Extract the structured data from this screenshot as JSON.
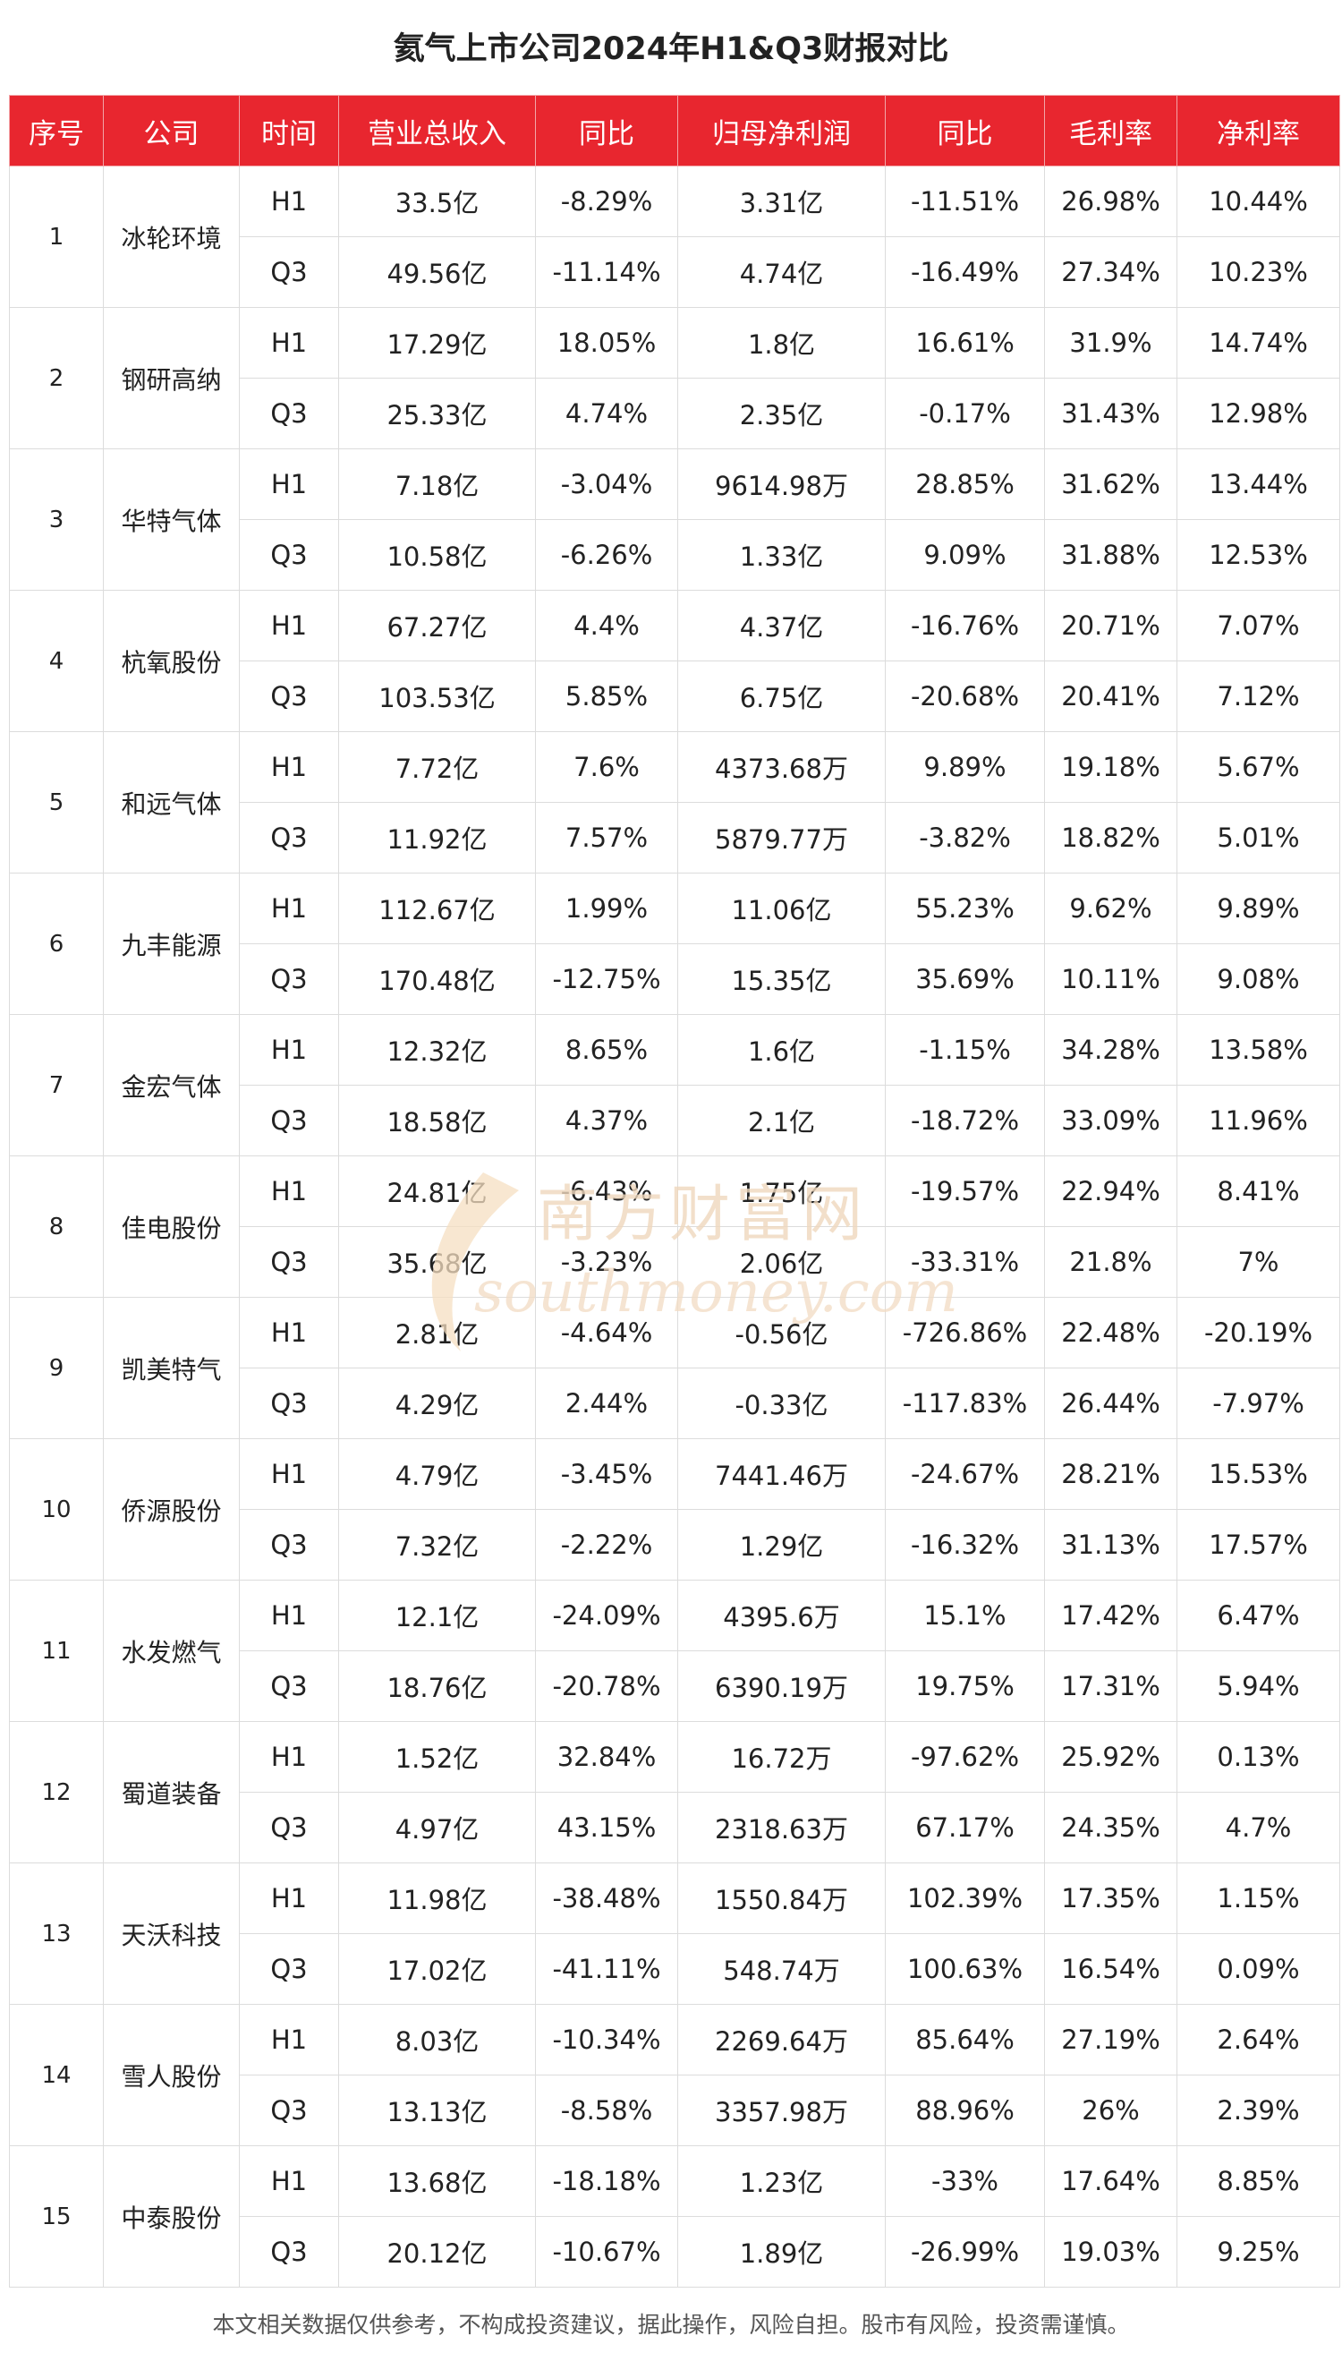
{
  "title": "氦气上市公司2024年H1&Q3财报对比",
  "columns": [
    "序号",
    "公司",
    "时间",
    "营业总收入",
    "同比",
    "归母净利润",
    "同比",
    "毛利率",
    "净利率"
  ],
  "rows": [
    {
      "seq": "1",
      "company": "冰轮环境",
      "periods": [
        {
          "time": "H1",
          "revenue": "33.5亿",
          "revenue_yoy": "-8.29%",
          "net_profit": "3.31亿",
          "profit_yoy": "-11.51%",
          "gross_margin": "26.98%",
          "net_margin": "10.44%"
        },
        {
          "time": "Q3",
          "revenue": "49.56亿",
          "revenue_yoy": "-11.14%",
          "net_profit": "4.74亿",
          "profit_yoy": "-16.49%",
          "gross_margin": "27.34%",
          "net_margin": "10.23%"
        }
      ]
    },
    {
      "seq": "2",
      "company": "钢研高纳",
      "periods": [
        {
          "time": "H1",
          "revenue": "17.29亿",
          "revenue_yoy": "18.05%",
          "net_profit": "1.8亿",
          "profit_yoy": "16.61%",
          "gross_margin": "31.9%",
          "net_margin": "14.74%"
        },
        {
          "time": "Q3",
          "revenue": "25.33亿",
          "revenue_yoy": "4.74%",
          "net_profit": "2.35亿",
          "profit_yoy": "-0.17%",
          "gross_margin": "31.43%",
          "net_margin": "12.98%"
        }
      ]
    },
    {
      "seq": "3",
      "company": "华特气体",
      "periods": [
        {
          "time": "H1",
          "revenue": "7.18亿",
          "revenue_yoy": "-3.04%",
          "net_profit": "9614.98万",
          "profit_yoy": "28.85%",
          "gross_margin": "31.62%",
          "net_margin": "13.44%"
        },
        {
          "time": "Q3",
          "revenue": "10.58亿",
          "revenue_yoy": "-6.26%",
          "net_profit": "1.33亿",
          "profit_yoy": "9.09%",
          "gross_margin": "31.88%",
          "net_margin": "12.53%"
        }
      ]
    },
    {
      "seq": "4",
      "company": "杭氧股份",
      "periods": [
        {
          "time": "H1",
          "revenue": "67.27亿",
          "revenue_yoy": "4.4%",
          "net_profit": "4.37亿",
          "profit_yoy": "-16.76%",
          "gross_margin": "20.71%",
          "net_margin": "7.07%"
        },
        {
          "time": "Q3",
          "revenue": "103.53亿",
          "revenue_yoy": "5.85%",
          "net_profit": "6.75亿",
          "profit_yoy": "-20.68%",
          "gross_margin": "20.41%",
          "net_margin": "7.12%"
        }
      ]
    },
    {
      "seq": "5",
      "company": "和远气体",
      "periods": [
        {
          "time": "H1",
          "revenue": "7.72亿",
          "revenue_yoy": "7.6%",
          "net_profit": "4373.68万",
          "profit_yoy": "9.89%",
          "gross_margin": "19.18%",
          "net_margin": "5.67%"
        },
        {
          "time": "Q3",
          "revenue": "11.92亿",
          "revenue_yoy": "7.57%",
          "net_profit": "5879.77万",
          "profit_yoy": "-3.82%",
          "gross_margin": "18.82%",
          "net_margin": "5.01%"
        }
      ]
    },
    {
      "seq": "6",
      "company": "九丰能源",
      "periods": [
        {
          "time": "H1",
          "revenue": "112.67亿",
          "revenue_yoy": "1.99%",
          "net_profit": "11.06亿",
          "profit_yoy": "55.23%",
          "gross_margin": "9.62%",
          "net_margin": "9.89%"
        },
        {
          "time": "Q3",
          "revenue": "170.48亿",
          "revenue_yoy": "-12.75%",
          "net_profit": "15.35亿",
          "profit_yoy": "35.69%",
          "gross_margin": "10.11%",
          "net_margin": "9.08%"
        }
      ]
    },
    {
      "seq": "7",
      "company": "金宏气体",
      "periods": [
        {
          "time": "H1",
          "revenue": "12.32亿",
          "revenue_yoy": "8.65%",
          "net_profit": "1.6亿",
          "profit_yoy": "-1.15%",
          "gross_margin": "34.28%",
          "net_margin": "13.58%"
        },
        {
          "time": "Q3",
          "revenue": "18.58亿",
          "revenue_yoy": "4.37%",
          "net_profit": "2.1亿",
          "profit_yoy": "-18.72%",
          "gross_margin": "33.09%",
          "net_margin": "11.96%"
        }
      ]
    },
    {
      "seq": "8",
      "company": "佳电股份",
      "periods": [
        {
          "time": "H1",
          "revenue": "24.81亿",
          "revenue_yoy": "-6.43%",
          "net_profit": "1.75亿",
          "profit_yoy": "-19.57%",
          "gross_margin": "22.94%",
          "net_margin": "8.41%"
        },
        {
          "time": "Q3",
          "revenue": "35.68亿",
          "revenue_yoy": "-3.23%",
          "net_profit": "2.06亿",
          "profit_yoy": "-33.31%",
          "gross_margin": "21.8%",
          "net_margin": "7%"
        }
      ]
    },
    {
      "seq": "9",
      "company": "凯美特气",
      "periods": [
        {
          "time": "H1",
          "revenue": "2.81亿",
          "revenue_yoy": "-4.64%",
          "net_profit": "-0.56亿",
          "profit_yoy": "-726.86%",
          "gross_margin": "22.48%",
          "net_margin": "-20.19%"
        },
        {
          "time": "Q3",
          "revenue": "4.29亿",
          "revenue_yoy": "2.44%",
          "net_profit": "-0.33亿",
          "profit_yoy": "-117.83%",
          "gross_margin": "26.44%",
          "net_margin": "-7.97%"
        }
      ]
    },
    {
      "seq": "10",
      "company": "侨源股份",
      "periods": [
        {
          "time": "H1",
          "revenue": "4.79亿",
          "revenue_yoy": "-3.45%",
          "net_profit": "7441.46万",
          "profit_yoy": "-24.67%",
          "gross_margin": "28.21%",
          "net_margin": "15.53%"
        },
        {
          "time": "Q3",
          "revenue": "7.32亿",
          "revenue_yoy": "-2.22%",
          "net_profit": "1.29亿",
          "profit_yoy": "-16.32%",
          "gross_margin": "31.13%",
          "net_margin": "17.57%"
        }
      ]
    },
    {
      "seq": "11",
      "company": "水发燃气",
      "periods": [
        {
          "time": "H1",
          "revenue": "12.1亿",
          "revenue_yoy": "-24.09%",
          "net_profit": "4395.6万",
          "profit_yoy": "15.1%",
          "gross_margin": "17.42%",
          "net_margin": "6.47%"
        },
        {
          "time": "Q3",
          "revenue": "18.76亿",
          "revenue_yoy": "-20.78%",
          "net_profit": "6390.19万",
          "profit_yoy": "19.75%",
          "gross_margin": "17.31%",
          "net_margin": "5.94%"
        }
      ]
    },
    {
      "seq": "12",
      "company": "蜀道装备",
      "periods": [
        {
          "time": "H1",
          "revenue": "1.52亿",
          "revenue_yoy": "32.84%",
          "net_profit": "16.72万",
          "profit_yoy": "-97.62%",
          "gross_margin": "25.92%",
          "net_margin": "0.13%"
        },
        {
          "time": "Q3",
          "revenue": "4.97亿",
          "revenue_yoy": "43.15%",
          "net_profit": "2318.63万",
          "profit_yoy": "67.17%",
          "gross_margin": "24.35%",
          "net_margin": "4.7%"
        }
      ]
    },
    {
      "seq": "13",
      "company": "天沃科技",
      "periods": [
        {
          "time": "H1",
          "revenue": "11.98亿",
          "revenue_yoy": "-38.48%",
          "net_profit": "1550.84万",
          "profit_yoy": "102.39%",
          "gross_margin": "17.35%",
          "net_margin": "1.15%"
        },
        {
          "time": "Q3",
          "revenue": "17.02亿",
          "revenue_yoy": "-41.11%",
          "net_profit": "548.74万",
          "profit_yoy": "100.63%",
          "gross_margin": "16.54%",
          "net_margin": "0.09%"
        }
      ]
    },
    {
      "seq": "14",
      "company": "雪人股份",
      "periods": [
        {
          "time": "H1",
          "revenue": "8.03亿",
          "revenue_yoy": "-10.34%",
          "net_profit": "2269.64万",
          "profit_yoy": "85.64%",
          "gross_margin": "27.19%",
          "net_margin": "2.64%"
        },
        {
          "time": "Q3",
          "revenue": "13.13亿",
          "revenue_yoy": "-8.58%",
          "net_profit": "3357.98万",
          "profit_yoy": "88.96%",
          "gross_margin": "26%",
          "net_margin": "2.39%"
        }
      ]
    },
    {
      "seq": "15",
      "company": "中泰股份",
      "periods": [
        {
          "time": "H1",
          "revenue": "13.68亿",
          "revenue_yoy": "-18.18%",
          "net_profit": "1.23亿",
          "profit_yoy": "-33%",
          "gross_margin": "17.64%",
          "net_margin": "8.85%"
        },
        {
          "time": "Q3",
          "revenue": "20.12亿",
          "revenue_yoy": "-10.67%",
          "net_profit": "1.89亿",
          "profit_yoy": "-26.99%",
          "gross_margin": "19.03%",
          "net_margin": "9.25%"
        }
      ]
    }
  ],
  "watermark": {
    "cn": "南方财富网",
    "en": "southmoney.com"
  },
  "footer": "本文相关数据仅供参考，不构成投资建议，据此操作，风险自担。股市有风险，投资需谨慎。",
  "colors": {
    "header_bg": "#e8262f",
    "header_text": "#ffffff",
    "border": "#dcdcdc",
    "watermark": "#f3d9b8"
  }
}
